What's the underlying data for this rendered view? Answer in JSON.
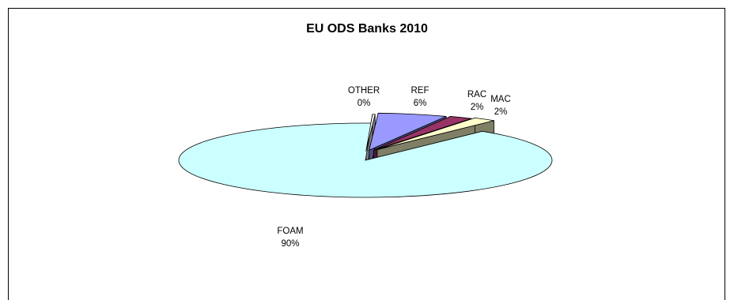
{
  "chart_data": {
    "type": "pie",
    "title": "EU ODS Banks 2010",
    "slices": [
      {
        "name": "FOAM",
        "value": 90,
        "pct_label": "90%",
        "color": "#ccffff",
        "side_color": "#5f7f7a"
      },
      {
        "name": "OTHER",
        "value": 0,
        "pct_label": "0%",
        "color": "#ffffff",
        "side_color": "#7f7f7f"
      },
      {
        "name": "REF",
        "value": 6,
        "pct_label": "6%",
        "color": "#9999ff",
        "side_color": "#4c4c7f"
      },
      {
        "name": "RAC",
        "value": 2,
        "pct_label": "2%",
        "color": "#993366",
        "side_color": "#4c1933"
      },
      {
        "name": "MAC",
        "value": 2,
        "pct_label": "2%",
        "color": "#ffffcc",
        "side_color": "#7f7f66"
      }
    ],
    "legend": "none"
  }
}
